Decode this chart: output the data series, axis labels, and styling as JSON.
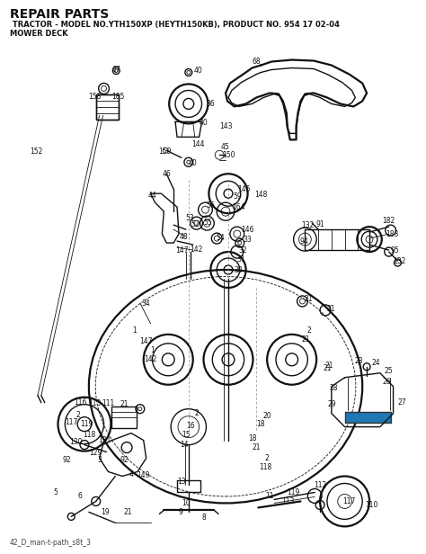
{
  "title": "REPAIR PARTS",
  "subtitle": " TRACTOR - MODEL NO.YTH150XP (HEYTH150KB), PRODUCT NO. 954 17 02-04",
  "subtitle2": "MOWER DECK",
  "footer": "42_D_man-t-path_s8t_3",
  "background_color": "#ffffff",
  "fig_width": 4.74,
  "fig_height": 6.16,
  "dpi": 100,
  "title_fontsize": 10,
  "subtitle_fontsize": 6.0,
  "footer_fontsize": 5.5,
  "label_fontsize": 5.5
}
